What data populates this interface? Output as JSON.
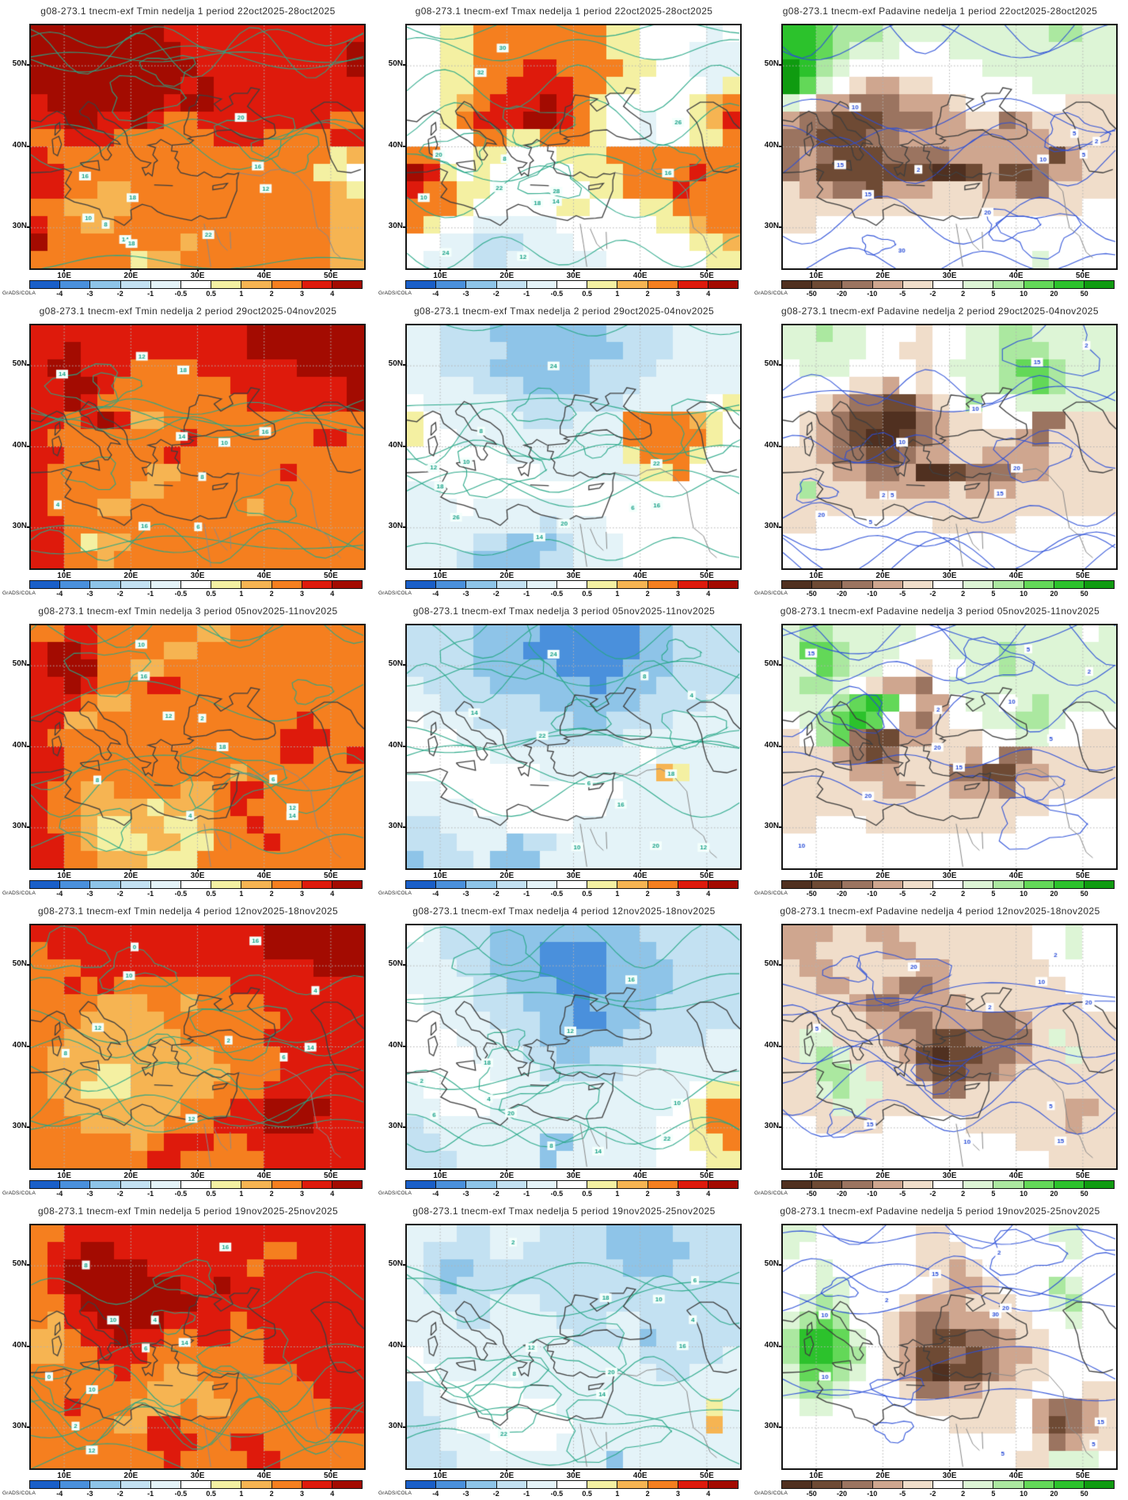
{
  "credit": "GrADS/COLA",
  "chart_data": {
    "type": "heatmap",
    "x_ticks": [
      "10E",
      "20E",
      "30E",
      "40E",
      "50E"
    ],
    "y_ticks": [
      "50N",
      "40N",
      "30N"
    ],
    "lon_range": [
      5,
      55
    ],
    "lat_range": [
      25,
      55
    ],
    "grid_step_deg": 10,
    "credit": "GrADS/COLA",
    "palettes": {
      "temperature": {
        "levels": [
          -4,
          -3,
          -2,
          -1,
          -0.5,
          0.5,
          1,
          2,
          3,
          4
        ],
        "colors": [
          "#1a5fc8",
          "#4a90dc",
          "#8ec4e8",
          "#c3e1f2",
          "#e4f3f8",
          "#ffffff",
          "#f4f0a2",
          "#f6b452",
          "#f57f1f",
          "#de1a0c",
          "#a30b01"
        ],
        "contour_color": "#27a887",
        "label_color": "#17a187"
      },
      "precipitation": {
        "levels": [
          -50,
          -20,
          -10,
          -5,
          -2,
          2,
          5,
          10,
          20,
          50
        ],
        "colors": [
          "#503020",
          "#6e4a34",
          "#9b7460",
          "#cfa68f",
          "#f0ddca",
          "#ffffff",
          "#ddf5d6",
          "#abe8a0",
          "#63d858",
          "#2cc22c",
          "#0f9b10"
        ],
        "contour_color": "#2b4fd8",
        "label_color": "#2b4fd8"
      }
    },
    "charts": [
      {
        "title": "g08-273.1 tnecm-exf Tmin nedelja 1 period 22oct2025-28oct2025",
        "variable": "Tmin",
        "week": 1,
        "period": "22oct2025-28oct2025",
        "palette": "temperature",
        "contour_labels": [
          8,
          10,
          12,
          14,
          16,
          16,
          18,
          18,
          20,
          22
        ],
        "grid": [
          "AAAAAAAA999999999999",
          "AAAAAAAAA9999999999A",
          "AAAAAAAAAA999999999A",
          "AAAAAAAAA9A999999999",
          "9AAAAAAA9AA999999999",
          "99AA99A9889999999988",
          "88999888888999888899",
          "98888888888888888867",
          "99888888888888888665",
          "99887788888888888876",
          "88777788888888888877",
          "98877888888888888877",
          "A8888888878888888877",
          "88888867788888888877"
        ]
      },
      {
        "title": "g08-273.1 tnecm-exf Tmax nedelja 1 period 22oct2025-28oct2025",
        "variable": "Tmax",
        "week": 1,
        "period": "22oct2025-28oct2025",
        "palette": "temperature",
        "contour_labels": [
          8,
          10,
          12,
          14,
          16,
          18,
          20,
          22,
          24,
          26,
          28,
          30,
          32
        ],
        "grid": [
          "55668888888866555545",
          "55668888888866555444",
          "55668889988886655444",
          "55668899998866555546",
          "55678999A98655555678",
          "5568999AA98655455679",
          "55558866888655455668",
          "88556655566688888888",
          "A9656555556668888988",
          "98866555555668889888",
          "88865555566555668888",
          "86554444455555566788",
          "55443334445555555667",
          "54443344444455555566"
        ]
      },
      {
        "title": "g08-273.1 tnecm-exf Padavine nedelja 1 period 22oct2025-28oct2025",
        "variable": "Padavine",
        "week": 1,
        "period": "22oct2025-28oct2025",
        "palette": "precipitation",
        "contour_labels": [
          2,
          2,
          5,
          5,
          10,
          10,
          15,
          15,
          20,
          30
        ],
        "grid": [
          "99877766666666667766",
          "99876665556666666666",
          "A9765555555566666666",
          "A8654334455555566666",
          "65332223334555555444",
          "32211122233442344444",
          "22111223333333334444",
          "23211122223333331344",
          "23111111100131123344",
          "43322133344433224444",
          "44444444444444444455",
          "44555555555555555555",
          "55555555555555555555",
          "55555555555555565555"
        ]
      },
      {
        "title": "g08-273.1 tnecm-exf Tmin nedelja 2 period 29oct2025-04nov2025",
        "variable": "Tmin",
        "week": 2,
        "period": "29oct2025-04nov2025",
        "palette": "temperature",
        "contour_labels": [
          4,
          6,
          8,
          10,
          12,
          14,
          14,
          16,
          16,
          18
        ],
        "grid": [
          "9999999999999AAAAAAA",
          "99A9999999999AAAAAAA",
          "9AA9998888999999AAAA",
          "99AA988888889999999A",
          "99A9888888888999999A",
          "9989A977888888888888",
          "98888888898888888998",
          "99888888988888888888",
          "98888887788888898888",
          "98888877888888888888",
          "98887788888887888888",
          "99888888888888888888",
          "99867788888888888888",
          "99887888888888888888"
        ]
      },
      {
        "title": "g08-273.1 tnecm-exf Tmax nedelja 2 period 29oct2025-04nov2025",
        "variable": "Tmax",
        "week": 2,
        "period": "29oct2025-04nov2025",
        "palette": "temperature",
        "contour_labels": [
          6,
          8,
          10,
          12,
          14,
          16,
          18,
          20,
          22,
          24,
          26
        ],
        "grid": [
          "44333222222233334444",
          "44333322222223334444",
          "44333222222333344444",
          "44443332222333444444",
          "54444433333334444456",
          "65444443334448888765",
          "65544444444448888865",
          "55555544444446888655",
          "55555555444444668555",
          "44555555555555555555",
          "44454444445555555555",
          "44444444344455555555",
          "44443322234445555555",
          "44432222334445555555"
        ]
      },
      {
        "title": "g08-273.1 tnecm-exf Padavine nedelja 2 period 29oct2025-04nov2025",
        "variable": "Padavine",
        "week": 2,
        "period": "29oct2025-04nov2025",
        "palette": "precipitation",
        "contour_labels": [
          2,
          2,
          5,
          5,
          10,
          10,
          15,
          15,
          20,
          20
        ],
        "grid": [
          "66766555455667766666",
          "66666554455667776666",
          "56665555456667887666",
          "55554435455667787666",
          "55432211345755666666",
          "54321100234455522444",
          "54321001234444324444",
          "44322112334433334444",
          "44433223001222334444",
          "47444333334333444444",
          "44444444444444444444",
          "44555555544444555555",
          "55555555555555555555",
          "55555555555555555555"
        ]
      },
      {
        "title": "g08-273.1 tnecm-exf Tmin nedelja 3 period 05nov2025-11nov2025",
        "variable": "Tmin",
        "week": 3,
        "period": "05nov2025-11nov2025",
        "palette": "temperature",
        "contour_labels": [
          2,
          4,
          6,
          8,
          10,
          12,
          12,
          14,
          16,
          18
        ],
        "grid": [
          "88998888887788888888",
          "9AA98888778888888888",
          "9AAA8877888888888888",
          "99A98889988888888888",
          "99987788888888888888",
          "99778888888888889888",
          "98888888888888899988",
          "99888888888888899889",
          "99888888888878888888",
          "98877888877899888888",
          "98877776777898888888",
          "98876677667889888888",
          "99876667766888988888",
          "99887776668888888888"
        ]
      },
      {
        "title": "g08-273.1 tnecm-exf Tmax nedelja 3 period 05nov2025-11nov2025",
        "variable": "Tmax",
        "week": 3,
        "period": "05nov2025-11nov2025",
        "palette": "temperature",
        "contour_labels": [
          4,
          6,
          8,
          10,
          12,
          14,
          16,
          18,
          20,
          22,
          24
        ],
        "grid": [
          "33332222111111223333",
          "33332221111111223333",
          "33332222211112223333",
          "43333222222122233333",
          "44333333222222333344",
          "54443333332233334444",
          "55544433333334444444",
          "55555444444444544444",
          "55555555444444476444",
          "44555555555554444444",
          "44445555555544444444",
          "33444455554444444444",
          "33344423344444444444",
          "23334222444444444444"
        ]
      },
      {
        "title": "g08-273.1 tnecm-exf Padavine nedelja 3 period 05nov2025-11nov2025",
        "variable": "Padavine",
        "week": 3,
        "period": "05nov2025-11nov2025",
        "palette": "precipitation",
        "contour_labels": [
          2,
          2,
          5,
          5,
          10,
          10,
          15,
          15,
          20,
          20
        ],
        "grid": [
          "67766666556666666656",
          "68876665556667666666",
          "66876655455667666666",
          "67765433256666666666",
          "66678985335665676666",
          "56789853245566776555",
          "45782113344455665544",
          "44432124444352244444",
          "44443334442211334444",
          "44444433443332444444",
          "44444444444444445555",
          "44555444444444555555",
          "55555555555555555555",
          "55555555555555555555"
        ]
      },
      {
        "title": "g08-273.1 tnecm-exf Tmin nedelja 4 period 12nov2025-18nov2025",
        "variable": "Tmin",
        "week": 4,
        "period": "12nov2025-18nov2025",
        "palette": "temperature",
        "contour_labels": [
          0,
          2,
          4,
          6,
          8,
          10,
          12,
          12,
          14,
          16
        ],
        "grid": [
          "99999999999999AAAAAA",
          "89999999999999AAAAAA",
          "88899999999999999AAA",
          "88989888888899999999",
          "88887778878888999999",
          "88877777888888899999",
          "88777777788888999999",
          "87777777777888899999",
          "87776677777788899999",
          "87766677777888999999",
          "88777777788899AAAA99",
          "88877777888999AAA999",
          "88888878999889999999",
          "88888889988888999999"
        ]
      },
      {
        "title": "g08-273.1 tnecm-exf Tmax nedelja 4 period 12nov2025-18nov2025",
        "variable": "Tmax",
        "week": 4,
        "period": "12nov2025-18nov2025",
        "palette": "temperature",
        "contour_labels": [
          2,
          4,
          6,
          8,
          10,
          12,
          14,
          16,
          18,
          20,
          22
        ],
        "grid": [
          "54333222222222333333",
          "44333222111122233333",
          "44433222111122223333",
          "44443322211122223333",
          "54443332221222233333",
          "55444333221122333333",
          "55544433222223333344",
          "55554443322333344444",
          "55555444333334444444",
          "45555544444444444566",
          "44555444444444445688",
          "34444444444444455688",
          "33444444224444455668",
          "33344444244444455566"
        ]
      },
      {
        "title": "g08-273.1 tnecm-exf Padavine nedelja 4 period 12nov2025-18nov2025",
        "variable": "Padavine",
        "week": 4,
        "period": "12nov2025-18nov2025",
        "palette": "precipitation",
        "contour_labels": [
          2,
          2,
          5,
          5,
          10,
          10,
          15,
          15,
          20,
          20
        ],
        "grid": [
          "33344334444444455655",
          "33444433444444455655",
          "43344444334444445555",
          "44334432234444444555",
          "44443223333444444455",
          "44444332233322344444",
          "46644433211222246444",
          "46764443101122344644",
          "44776444211223444444",
          "44676644422444444444",
          "44466444444444444334",
          "55444455555444444344",
          "55555555555555444444",
          "55555555555555554444"
        ]
      },
      {
        "title": "g08-273.1 tnecm-exf Tmin nedelja 5 period 19nov2025-25nov2025",
        "variable": "Tmin",
        "week": 5,
        "period": "19nov2025-25nov2025",
        "palette": "temperature",
        "contour_labels": [
          0,
          2,
          4,
          6,
          8,
          10,
          10,
          12,
          14,
          16
        ],
        "grid": [
          "88999999999999999999",
          "899AA999999999889999",
          "89AAAAA9999998999999",
          "89AAAAAAA99A99999999",
          "889AAAAAAA9999999999",
          "8799AAAA999989999999",
          "77899A99889988999999",
          "77889998888888999999",
          "88888988778888889999",
          "88888887777888888999",
          "88988877787788888899",
          "88888779988888888899",
          "88888889998899888888",
          "88888888988889988888"
        ]
      },
      {
        "title": "g08-273.1 tnecm-exf Tmax nedelja 5 period 19nov2025-25nov2025",
        "variable": "Tmax",
        "week": 5,
        "period": "19nov2025-25nov2025",
        "palette": "temperature",
        "contour_labels": [
          2,
          4,
          6,
          8,
          10,
          12,
          14,
          16,
          18,
          20,
          22
        ],
        "grid": [
          "44433444333322223333",
          "43333443333322222333",
          "43223333333332223333",
          "43233333333333333333",
          "44333444333333333333",
          "44433444433344333333",
          "44444444443334233333",
          "54444444444444333334",
          "55444444444444433444",
          "34555554444444444444",
          "34455555544444444464",
          "33455555554444444474",
          "33444555544444444444",
          "33344444444424444444"
        ]
      },
      {
        "title": "g08-273.1 tnecm-exf Padavine nedelja 5 period 19nov2025-25nov2025",
        "variable": "Padavine",
        "week": 5,
        "period": "19nov2025-25nov2025",
        "palette": "precipitation",
        "contour_labels": [
          2,
          2,
          5,
          5,
          10,
          10,
          15,
          15,
          20,
          30
        ],
        "grid": [
          "66555555445555556655",
          "65555555444555555655",
          "55655555443455555555",
          "55665555543345557655",
          "56765554333444556755",
          "67875543223334455655",
          "79986543211223445555",
          "79987543112123345555",
          "68876543101123445555",
          "67765554223344455544",
          "56655555444444532234",
          "55555555554444531234",
          "55555555555555542344",
          "55555555555555446665"
        ]
      }
    ]
  }
}
